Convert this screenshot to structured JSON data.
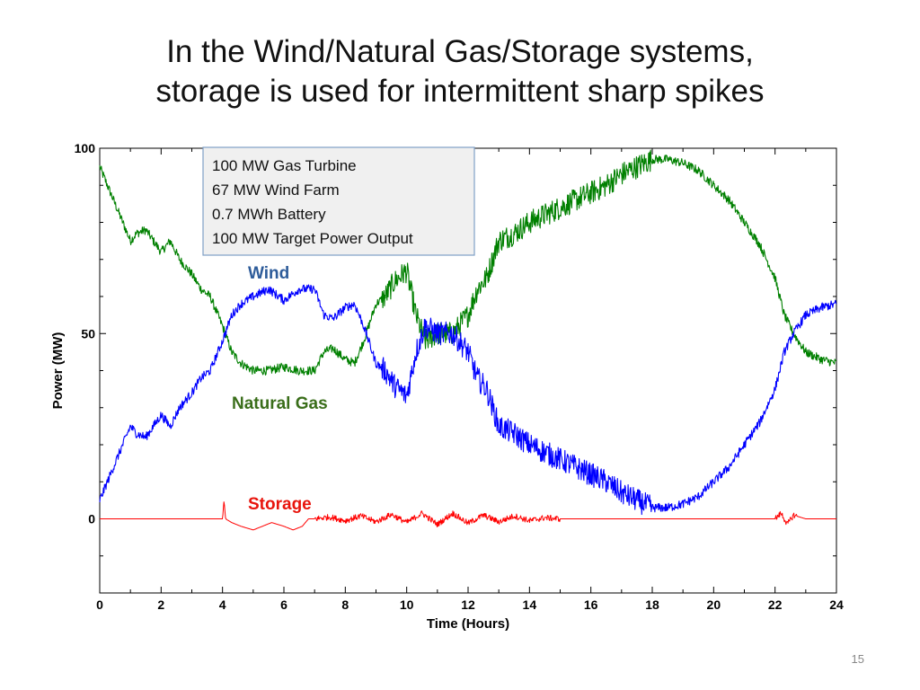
{
  "slide": {
    "title_line1": "In the Wind/Natural Gas/Storage systems,",
    "title_line2": "storage is used for intermittent sharp spikes",
    "page_number": "15"
  },
  "chart_data": {
    "type": "line",
    "title": "",
    "xlabel": "Time (Hours)",
    "ylabel": "Power (MW)",
    "xlim": [
      0,
      24
    ],
    "ylim": [
      -20,
      100
    ],
    "x_ticks": [
      0,
      2,
      4,
      6,
      8,
      10,
      12,
      14,
      16,
      18,
      20,
      22,
      24
    ],
    "y_ticks": [
      0,
      50,
      100
    ],
    "grid": false,
    "info_box": [
      "100 MW Gas Turbine",
      "67 MW Wind Farm",
      "0.7 MWh Battery",
      "100 MW Target Power Output"
    ],
    "series": [
      {
        "name": "Wind",
        "color": "#0000ff",
        "label_color": "#2e5c9a",
        "x": [
          0,
          0.5,
          1,
          1.2,
          1.5,
          2,
          2.3,
          2.6,
          3,
          3.3,
          3.6,
          4,
          4.3,
          4.6,
          5,
          5.5,
          6,
          6.5,
          7,
          7.3,
          7.6,
          8,
          8.3,
          8.6,
          9,
          9.3,
          9.6,
          10,
          10.3,
          10.6,
          11,
          11.5,
          12,
          12.3,
          12.6,
          13,
          13.5,
          14,
          14.5,
          15,
          15.5,
          16,
          16.5,
          17,
          17.5,
          18,
          18.5,
          19,
          19.5,
          20,
          20.5,
          21,
          21.5,
          22,
          22.3,
          22.6,
          23,
          23.5,
          24
        ],
        "y": [
          5,
          15,
          25,
          23,
          22,
          28,
          25,
          30,
          34,
          38,
          40,
          48,
          55,
          58,
          60,
          62,
          59,
          62,
          62,
          55,
          54,
          57,
          58,
          52,
          42,
          40,
          36,
          33,
          45,
          52,
          50,
          50,
          45,
          38,
          35,
          25,
          23,
          20,
          18,
          16,
          14,
          12,
          10,
          7,
          5,
          3,
          3,
          4,
          6,
          10,
          14,
          20,
          26,
          35,
          45,
          50,
          55,
          57,
          58
        ]
      },
      {
        "name": "Natural Gas",
        "color": "#008000",
        "label_color": "#3a6e1a",
        "x": [
          0,
          0.5,
          1,
          1.2,
          1.5,
          2,
          2.3,
          2.6,
          3,
          3.3,
          3.6,
          4,
          4.3,
          4.6,
          5,
          5.5,
          6,
          6.5,
          7,
          7.3,
          7.6,
          8,
          8.3,
          8.6,
          9,
          9.3,
          9.6,
          10,
          10.3,
          10.6,
          11,
          11.5,
          12,
          12.3,
          12.6,
          13,
          13.5,
          14,
          14.5,
          15,
          15.5,
          16,
          16.5,
          17,
          17.5,
          18,
          18.5,
          19,
          19.5,
          20,
          20.5,
          21,
          21.5,
          22,
          22.3,
          22.6,
          23,
          23.5,
          24
        ],
        "y": [
          95,
          85,
          75,
          77,
          78,
          72,
          75,
          70,
          66,
          62,
          60,
          52,
          45,
          42,
          40,
          40,
          41,
          40,
          40,
          45,
          46,
          43,
          42,
          48,
          58,
          60,
          64,
          67,
          55,
          48,
          50,
          50,
          55,
          62,
          65,
          75,
          77,
          80,
          82,
          84,
          86,
          88,
          90,
          93,
          95,
          97,
          97,
          96,
          94,
          90,
          86,
          80,
          74,
          65,
          55,
          50,
          45,
          43,
          42
        ]
      },
      {
        "name": "Storage",
        "color": "#ff0000",
        "label_color": "#e8140c",
        "x": [
          0,
          4,
          4.05,
          4.1,
          4.3,
          4.6,
          5,
          5.3,
          5.6,
          6,
          6.3,
          6.6,
          6.8,
          7,
          7.5,
          8,
          8.5,
          9,
          9.5,
          10,
          10.5,
          11,
          11.5,
          12,
          12.5,
          13,
          13.5,
          14,
          14.5,
          15,
          22,
          22.2,
          22.4,
          22.6,
          23,
          24
        ],
        "y": [
          0,
          0,
          5,
          0,
          -1,
          -2,
          -3,
          -2,
          -1,
          -2,
          -3,
          -2,
          0,
          0,
          0.5,
          -0.5,
          0.8,
          -0.8,
          1.2,
          -1,
          1.5,
          -1.5,
          1.5,
          -1.2,
          1,
          -0.8,
          0.8,
          -0.5,
          0.3,
          0,
          0,
          1.5,
          -1.5,
          1,
          0,
          0
        ]
      }
    ]
  }
}
